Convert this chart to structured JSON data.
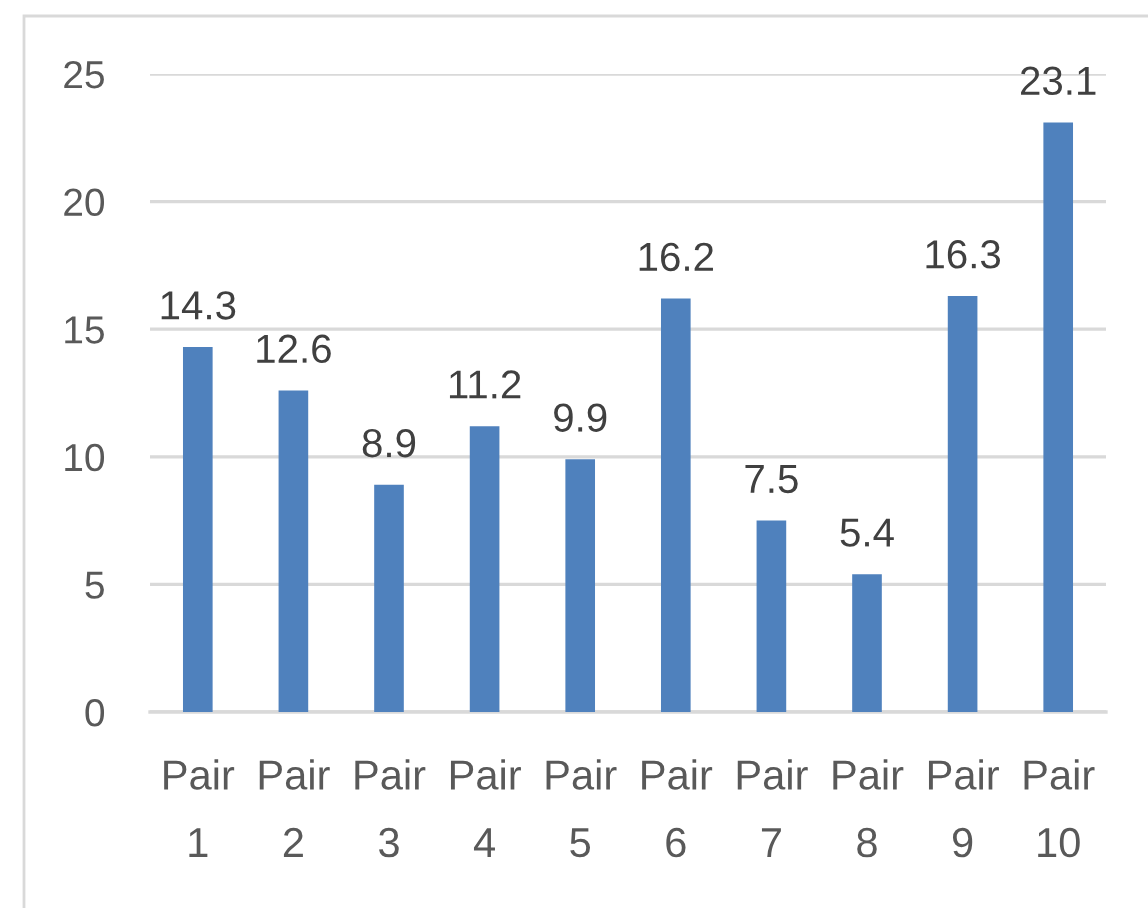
{
  "chart_data": {
    "type": "bar",
    "categories": [
      "Pair 1",
      "Pair 2",
      "Pair 3",
      "Pair 4",
      "Pair 5",
      "Pair 6",
      "Pair 7",
      "Pair 8",
      "Pair 9",
      "Pair 10"
    ],
    "values": [
      14.3,
      12.6,
      8.9,
      11.2,
      9.9,
      16.2,
      7.5,
      5.4,
      16.3,
      23.1
    ],
    "color": "#4f81bd",
    "ylim": [
      0,
      25
    ],
    "yticks": [
      0,
      5,
      10,
      15,
      20,
      25
    ],
    "grid": "y",
    "data_labels": true
  }
}
